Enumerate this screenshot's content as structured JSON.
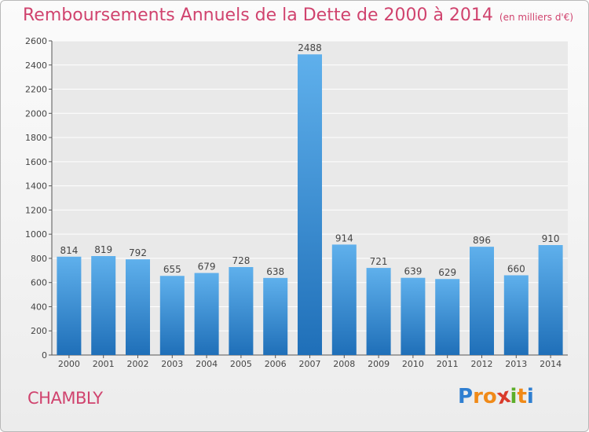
{
  "chart_data": {
    "type": "bar",
    "title": "Remboursements Annuels de la Dette de 2000 à 2014",
    "unit_label": "(en milliers d'€)",
    "categories": [
      "2000",
      "2001",
      "2002",
      "2003",
      "2004",
      "2005",
      "2006",
      "2007",
      "2008",
      "2009",
      "2010",
      "2011",
      "2012",
      "2013",
      "2014"
    ],
    "values": [
      814,
      819,
      792,
      655,
      679,
      728,
      638,
      2488,
      914,
      721,
      639,
      629,
      896,
      660,
      910
    ],
    "ylim": [
      0,
      2600
    ],
    "yticks": [
      0,
      200,
      400,
      600,
      800,
      1000,
      1200,
      1400,
      1600,
      1800,
      2000,
      2200,
      2400,
      2600
    ],
    "grid": true,
    "xlabel": "",
    "ylabel": ""
  },
  "footer": {
    "city": "CHAMBLY",
    "logo_letters": [
      "P",
      "r",
      "o",
      "x",
      "i",
      "t",
      "i"
    ]
  },
  "colors": {
    "title": "#d0436e",
    "bar_top": "#5fb0ec",
    "bar_bottom": "#1f6fb8",
    "grid": "#ffffff",
    "logo": [
      "#2f7fd1",
      "#f08a18",
      "#f08a18",
      "#d93a2a",
      "#5cae2a",
      "#f08a18",
      "#2f7fd1"
    ]
  }
}
